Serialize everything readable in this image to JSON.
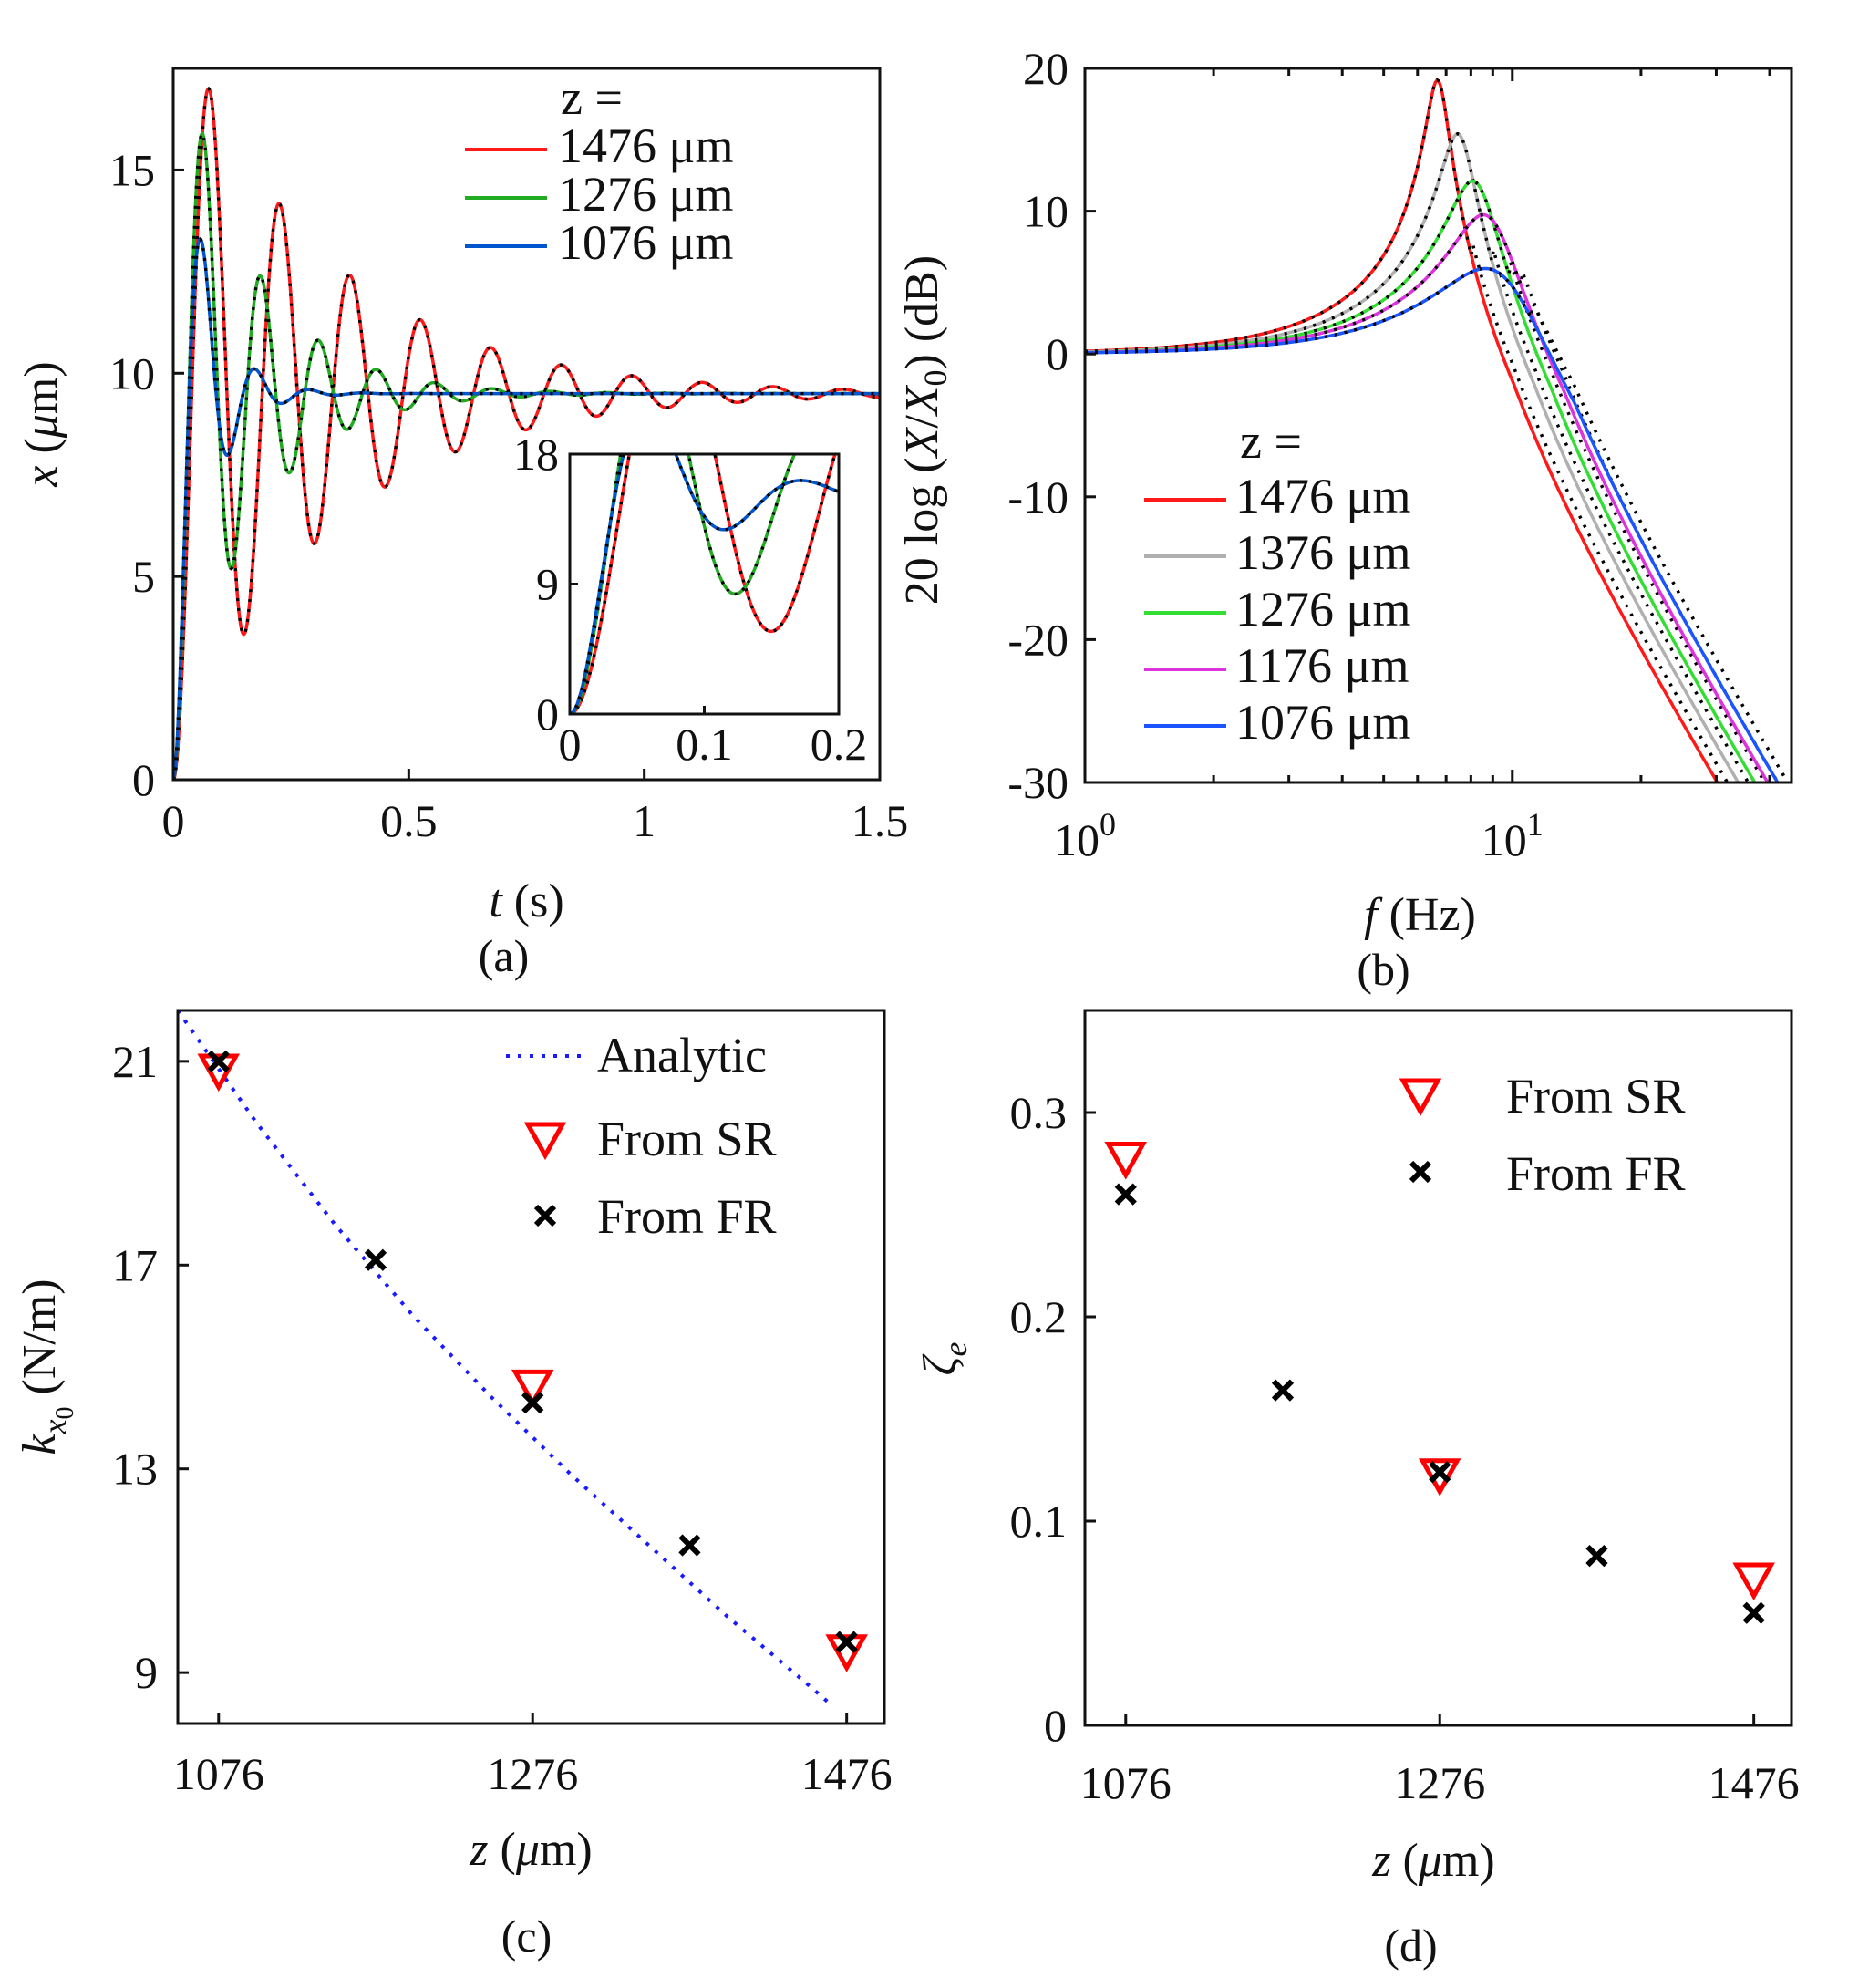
{
  "chart_data": [
    {
      "panel": "(a)",
      "type": "line",
      "xlabel": "t (s)",
      "ylabel": "x (μm)",
      "xlim": [
        0,
        1.5
      ],
      "ylim": [
        0,
        17.5
      ],
      "xticks": [
        "0",
        "0.5",
        "1",
        "1.5"
      ],
      "yticks": [
        "0",
        "5",
        "10",
        "15"
      ],
      "legend_title": "z =",
      "legend_position": "top-right",
      "series": [
        {
          "name": "1476 μm",
          "color": "#ff1a1a",
          "final": 9.5,
          "amp": 9.5,
          "freq_hz": 6.7,
          "zeta": 0.075,
          "fitted_dotted": true
        },
        {
          "name": "1276 μm",
          "color": "#22aa22",
          "final": 9.5,
          "amp": 9.5,
          "freq_hz": 8.2,
          "zeta": 0.125,
          "fitted_dotted": true
        },
        {
          "name": "1076 μm",
          "color": "#0055cc",
          "final": 9.5,
          "amp": 9.5,
          "freq_hz": 9.1,
          "zeta": 0.28,
          "fitted_dotted": true
        }
      ],
      "inset": {
        "xlim": [
          0,
          0.2
        ],
        "ylim": [
          0,
          18
        ],
        "xticks": [
          "0",
          "0.1",
          "0.2"
        ],
        "yticks": [
          "0",
          "9",
          "18"
        ]
      }
    },
    {
      "panel": "(b)",
      "type": "line",
      "xscale": "log",
      "xlabel": "f (Hz)",
      "ylabel": "20 log (X/X₀) (dB)",
      "xlim": [
        1,
        45
      ],
      "ylim": [
        -30,
        20
      ],
      "xticks": [
        "10⁰",
        "10¹"
      ],
      "yticks": [
        "-30",
        "-20",
        "-10",
        "0",
        "10",
        "20"
      ],
      "legend_title": "z =",
      "legend_position": "bottom-left",
      "series": [
        {
          "name": "1476 μm",
          "color": "#ff1a1a",
          "fn_hz": 6.7,
          "zeta": 0.055,
          "peak_db": 19
        },
        {
          "name": "1376 μm",
          "color": "#b0b0b0",
          "fn_hz": 7.5,
          "zeta": 0.085,
          "peak_db": 15
        },
        {
          "name": "1276 μm",
          "color": "#33dd33",
          "fn_hz": 8.2,
          "zeta": 0.125,
          "peak_db": 12
        },
        {
          "name": "1176 μm",
          "color": "#dd33dd",
          "fn_hz": 8.8,
          "zeta": 0.165,
          "peak_db": 9.5
        },
        {
          "name": "1076 μm",
          "color": "#1a55ff",
          "fn_hz": 9.3,
          "zeta": 0.26,
          "peak_db": 6
        }
      ]
    },
    {
      "panel": "(c)",
      "type": "scatter",
      "xlabel": "z (μm)",
      "ylabel": "k_x0 (N/m)",
      "xlim": [
        1050,
        1500
      ],
      "ylim": [
        8,
        22
      ],
      "xticks": [
        "1076",
        "1276",
        "1476"
      ],
      "yticks": [
        "9",
        "13",
        "17",
        "21"
      ],
      "legend_position": "top-right",
      "analytic": {
        "name": "Analytic",
        "color": "#1a1aff",
        "x": [
          1050,
          1100,
          1150,
          1200,
          1250,
          1300,
          1350,
          1400,
          1450,
          1465
        ],
        "y": [
          22.0,
          19.8,
          17.8,
          16.0,
          14.4,
          12.9,
          11.5,
          10.1,
          8.8,
          8.4
        ]
      },
      "from_sr": {
        "name": "From SR",
        "color": "#ff0000",
        "x": [
          1076,
          1276,
          1476
        ],
        "y": [
          20.8,
          14.6,
          9.4
        ]
      },
      "from_fr": {
        "name": "From FR",
        "color": "#000000",
        "x": [
          1076,
          1176,
          1276,
          1376,
          1476
        ],
        "y": [
          21.0,
          17.1,
          14.3,
          11.5,
          9.6
        ]
      }
    },
    {
      "panel": "(d)",
      "type": "scatter",
      "xlabel": "z (μm)",
      "ylabel": "ζ_e",
      "xlim": [
        1050,
        1500
      ],
      "ylim": [
        0,
        0.35
      ],
      "xticks": [
        "1076",
        "1276",
        "1476"
      ],
      "yticks": [
        "0",
        "0.1",
        "0.2",
        "0.3"
      ],
      "legend_position": "top-right",
      "from_sr": {
        "name": "From SR",
        "color": "#ff0000",
        "x": [
          1076,
          1276,
          1476
        ],
        "y": [
          0.277,
          0.122,
          0.071
        ]
      },
      "from_fr": {
        "name": "From FR",
        "color": "#000000",
        "x": [
          1076,
          1176,
          1276,
          1376,
          1476
        ],
        "y": [
          0.26,
          0.164,
          0.124,
          0.083,
          0.055
        ]
      }
    }
  ]
}
